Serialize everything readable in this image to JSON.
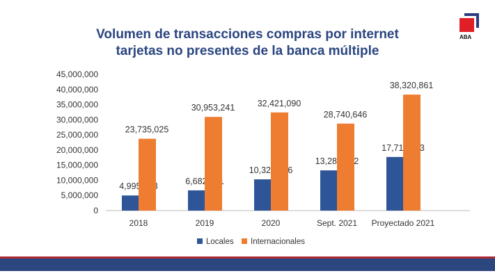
{
  "logo": {
    "text": "ABA"
  },
  "colors": {
    "locales": "#2e5597",
    "internacionales": "#ee7d31",
    "title": "#2a4580"
  },
  "chart_data": {
    "type": "bar",
    "title": [
      "Volumen de transacciones compras por internet",
      "tarjetas no presentes de la banca múltiple"
    ],
    "categories": [
      "2018",
      "2019",
      "2020",
      "Sept. 2021",
      "Proyectado 2021"
    ],
    "series": [
      {
        "name": "Locales",
        "values": [
          4995073,
          6682401,
          10323266,
          13283942,
          17711923
        ],
        "labels": [
          "4,995,073",
          "6,682,401",
          "10,323,266",
          "13,283,942",
          "17,711,923"
        ]
      },
      {
        "name": "Internacionales",
        "values": [
          23735025,
          30953241,
          32421090,
          28740646,
          38320861
        ],
        "labels": [
          "23,735,025",
          "30,953,241",
          "32,421,090",
          "28,740,646",
          "38,320,861"
        ]
      }
    ],
    "ylim": [
      0,
      45000000
    ],
    "yticks": [
      "0",
      "5,000,000",
      "10,000,000",
      "15,000,000",
      "20,000,000",
      "25,000,000",
      "30,000,000",
      "35,000,000",
      "40,000,000",
      "45,000,000"
    ],
    "legend": "bottom",
    "grid": false
  }
}
